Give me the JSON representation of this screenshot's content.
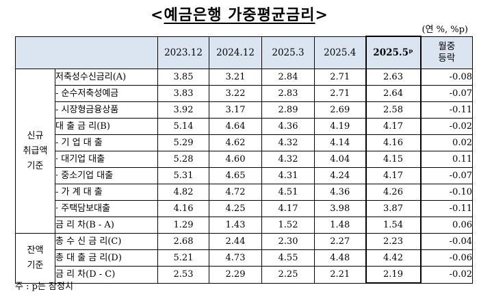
{
  "title": "예금은행 가중평균금리",
  "title_open": "<",
  "title_close": ">",
  "unit": "(연 %, %p)",
  "columns": [
    "2023.12",
    "2024.12",
    "2025.3",
    "2025.4",
    "2025.5ᵖ",
    "월중\n등락"
  ],
  "groups": [
    {
      "label": "신규\n취급액\n기준",
      "rows": [
        {
          "label": "저축성수신금리(A)",
          "values": [
            "3.85",
            "3.21",
            "2.84",
            "2.71",
            "2.63",
            "-0.08"
          ]
        },
        {
          "label": "- 순수저축성예금",
          "values": [
            "3.83",
            "3.22",
            "2.83",
            "2.71",
            "2.64",
            "-0.07"
          ]
        },
        {
          "label": "- 시장형금융상품",
          "values": [
            "3.92",
            "3.17",
            "2.89",
            "2.69",
            "2.58",
            "-0.11"
          ]
        },
        {
          "label": "대 출 금 리(B)",
          "values": [
            "5.14",
            "4.64",
            "4.36",
            "4.19",
            "4.17",
            "-0.02"
          ]
        },
        {
          "label": "- 기 업 대 출",
          "values": [
            "5.29",
            "4.62",
            "4.32",
            "4.14",
            "4.16",
            "0.02"
          ]
        },
        {
          "label": "· 대기업 대출",
          "values": [
            "5.28",
            "4.60",
            "4.32",
            "4.04",
            "4.15",
            "0.11"
          ]
        },
        {
          "label": "· 중소기업 대출",
          "values": [
            "5.31",
            "4.65",
            "4.31",
            "4.24",
            "4.17",
            "-0.07"
          ]
        },
        {
          "label": "- 가 계 대 출",
          "values": [
            "4.82",
            "4.72",
            "4.51",
            "4.36",
            "4.26",
            "-0.10"
          ]
        },
        {
          "label": "· 주택담보대출",
          "values": [
            "4.16",
            "4.25",
            "4.17",
            "3.98",
            "3.87",
            "-0.11"
          ]
        },
        {
          "label": "금 리 차(B - A)",
          "values": [
            "1.29",
            "1.43",
            "1.52",
            "1.48",
            "1.54",
            "0.06"
          ]
        }
      ]
    },
    {
      "label": "잔액\n기준",
      "rows": [
        {
          "label": "총 수 신 금 리(C)",
          "values": [
            "2.68",
            "2.44",
            "2.30",
            "2.27",
            "2.23",
            "-0.04"
          ]
        },
        {
          "label": "총 대 출 금 리(D)",
          "values": [
            "5.21",
            "4.73",
            "4.55",
            "4.48",
            "4.42",
            "-0.06"
          ]
        },
        {
          "label": "금 리 차(D - C)",
          "values": [
            "2.53",
            "2.29",
            "2.25",
            "2.21",
            "2.19",
            "-0.02"
          ]
        }
      ]
    }
  ],
  "note": "주 : p는 잠정치"
}
